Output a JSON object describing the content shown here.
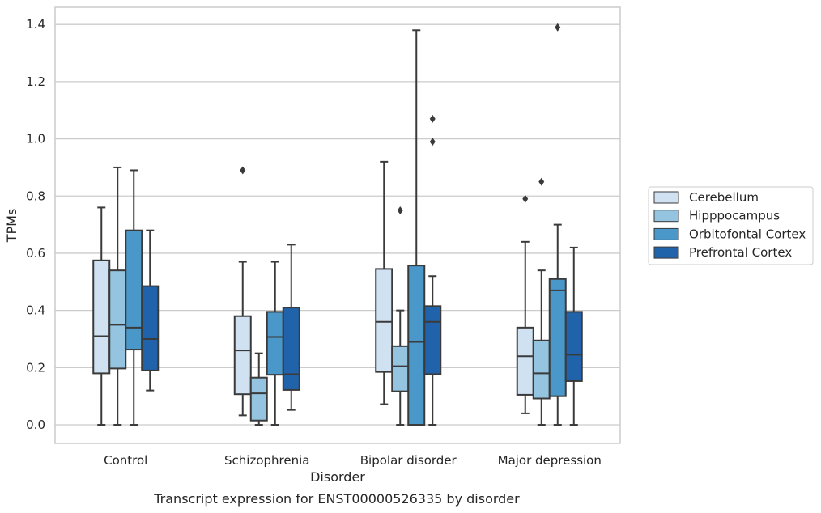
{
  "chart_data": {
    "type": "box",
    "title": "Transcript expression for ENST00000526335 by disorder",
    "xlabel": "Disorder",
    "ylabel": "TPMs",
    "ylim": [
      -0.065,
      1.46
    ],
    "yticks": [
      0.0,
      0.2,
      0.4,
      0.6,
      0.8,
      1.0,
      1.2,
      1.4
    ],
    "ytick_labels": [
      "0.0",
      "0.2",
      "0.4",
      "0.6",
      "0.8",
      "1.0",
      "1.2",
      "1.4"
    ],
    "grid": "horizontal",
    "legend_position": "right",
    "categories": [
      "Control",
      "Schizophrenia",
      "Bipolar disorder",
      "Major depression"
    ],
    "series": [
      {
        "name": "Cerebellum",
        "color": "#d0e1f2",
        "boxes": [
          {
            "min": 0.0,
            "q1": 0.18,
            "median": 0.31,
            "q3": 0.575,
            "max": 0.76,
            "outliers": []
          },
          {
            "min": 0.033,
            "q1": 0.107,
            "median": 0.26,
            "q3": 0.38,
            "max": 0.57,
            "outliers": [
              0.89
            ]
          },
          {
            "min": 0.072,
            "q1": 0.185,
            "median": 0.36,
            "q3": 0.545,
            "max": 0.92,
            "outliers": []
          },
          {
            "min": 0.04,
            "q1": 0.105,
            "median": 0.24,
            "q3": 0.34,
            "max": 0.64,
            "outliers": [
              0.79
            ]
          }
        ]
      },
      {
        "name": "Hipppocampus",
        "color": "#94c4df",
        "boxes": [
          {
            "min": 0.0,
            "q1": 0.197,
            "median": 0.35,
            "q3": 0.54,
            "max": 0.9,
            "outliers": []
          },
          {
            "min": 0.0,
            "q1": 0.015,
            "median": 0.11,
            "q3": 0.165,
            "max": 0.25,
            "outliers": []
          },
          {
            "min": 0.0,
            "q1": 0.117,
            "median": 0.205,
            "q3": 0.275,
            "max": 0.4,
            "outliers": [
              0.75
            ]
          },
          {
            "min": 0.0,
            "q1": 0.092,
            "median": 0.18,
            "q3": 0.295,
            "max": 0.54,
            "outliers": [
              0.85
            ]
          }
        ]
      },
      {
        "name": "Orbitofontal Cortex",
        "color": "#4a98c9",
        "boxes": [
          {
            "min": 0.0,
            "q1": 0.263,
            "median": 0.34,
            "q3": 0.68,
            "max": 0.89,
            "outliers": []
          },
          {
            "min": 0.0,
            "q1": 0.175,
            "median": 0.307,
            "q3": 0.395,
            "max": 0.57,
            "outliers": []
          },
          {
            "min": 0.0,
            "q1": 0.0,
            "median": 0.29,
            "q3": 0.557,
            "max": 1.38,
            "outliers": []
          },
          {
            "min": 0.0,
            "q1": 0.1,
            "median": 0.47,
            "q3": 0.51,
            "max": 0.7,
            "outliers": [
              1.39
            ]
          }
        ]
      },
      {
        "name": "Prefrontal Cortex",
        "color": "#2163aa",
        "boxes": [
          {
            "min": 0.12,
            "q1": 0.19,
            "median": 0.3,
            "q3": 0.485,
            "max": 0.68,
            "outliers": []
          },
          {
            "min": 0.052,
            "q1": 0.122,
            "median": 0.177,
            "q3": 0.41,
            "max": 0.63,
            "outliers": []
          },
          {
            "min": 0.0,
            "q1": 0.177,
            "median": 0.36,
            "q3": 0.415,
            "max": 0.52,
            "outliers": [
              0.99,
              1.07
            ]
          },
          {
            "min": 0.0,
            "q1": 0.153,
            "median": 0.245,
            "q3": 0.395,
            "max": 0.62,
            "outliers": []
          }
        ]
      }
    ]
  }
}
